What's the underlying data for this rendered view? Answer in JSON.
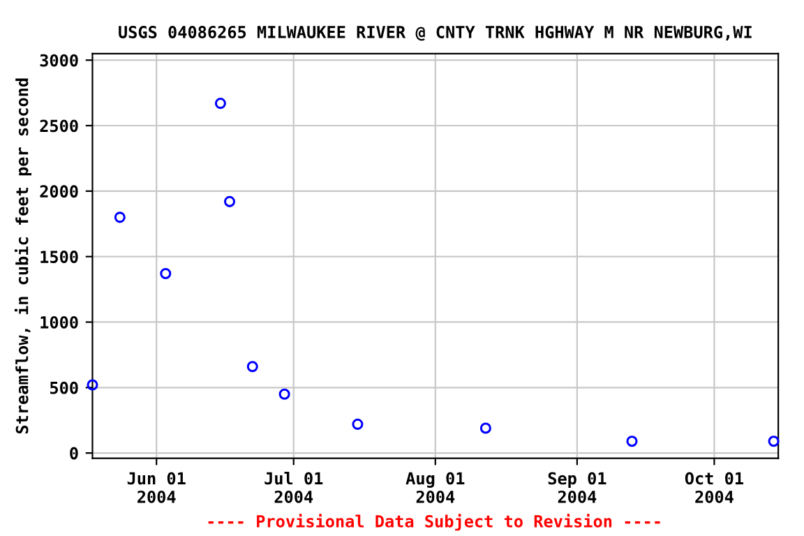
{
  "chart_data": {
    "type": "scatter",
    "title": "USGS 04086265 MILWAUKEE RIVER @ CNTY TRNK HGHWAY M NR NEWBURG,WI",
    "ylabel": "Streamflow, in cubic feet per second",
    "x": [
      "2004-05-18",
      "2004-05-24",
      "2004-06-03",
      "2004-06-15",
      "2004-06-17",
      "2004-06-22",
      "2004-06-29",
      "2004-07-15",
      "2004-08-12",
      "2004-09-13",
      "2004-10-14"
    ],
    "series": [
      {
        "color": "#0000ff",
        "values": [
          520,
          1800,
          1370,
          2670,
          1920,
          660,
          450,
          220,
          190,
          90,
          90
        ]
      }
    ],
    "xlim": [
      "2004-05-18",
      "2004-10-15"
    ],
    "xticks": [
      {
        "value": "2004-06-01",
        "label": "Jun 01\n2004"
      },
      {
        "value": "2004-07-01",
        "label": "Jul 01\n2004"
      },
      {
        "value": "2004-08-01",
        "label": "Aug 01\n2004"
      },
      {
        "value": "2004-09-01",
        "label": "Sep 01\n2004"
      },
      {
        "value": "2004-10-01",
        "label": "Oct 01\n2004"
      }
    ],
    "ylim": [
      -40,
      3050
    ],
    "yticks": [
      0,
      500,
      1000,
      1500,
      2000,
      2500,
      3000
    ],
    "grid": true,
    "marker": "circle",
    "annotations": [
      "---- Provisional Data Subject to Revision ----"
    ]
  }
}
